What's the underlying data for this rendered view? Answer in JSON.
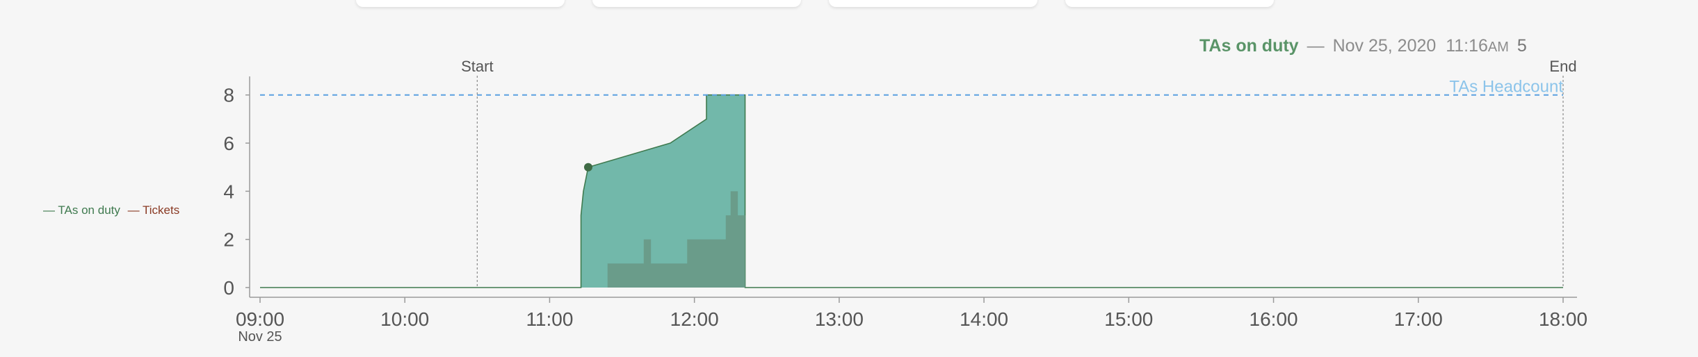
{
  "top_cards": [
    {},
    {},
    {},
    {}
  ],
  "tooltip": {
    "series": "TAs on duty",
    "dash": "—",
    "date": "Nov 25, 2020",
    "time": "11:16",
    "ampm": "AM",
    "value": "5"
  },
  "legend": {
    "duty_label": "— TAs on duty",
    "tickets_label": "— Tickets"
  },
  "chart_data": {
    "type": "area",
    "x_ticks": [
      "09:00",
      "10:00",
      "11:00",
      "12:00",
      "13:00",
      "14:00",
      "15:00",
      "16:00",
      "17:00",
      "18:00"
    ],
    "x_date_label": "Nov 25",
    "xlim": [
      "09:00",
      "18:00"
    ],
    "ylim": [
      0,
      8.8
    ],
    "y_ticks": [
      0,
      2,
      4,
      6,
      8
    ],
    "grid": false,
    "headcount": {
      "label": "TAs Headcount",
      "value": 8,
      "color": "#5aa0e0"
    },
    "markers": [
      {
        "label": "Start",
        "time": "10:30"
      },
      {
        "label": "End",
        "time": "18:00"
      }
    ],
    "series": [
      {
        "name": "TAs on duty",
        "color": "#72b8aa",
        "line_color": "#3f7a4f",
        "steps": [
          [
            "09:00",
            0
          ],
          [
            "11:13",
            0
          ],
          [
            "11:13",
            3
          ],
          [
            "11:14",
            4
          ],
          [
            "11:16",
            5
          ],
          [
            "11:50",
            6
          ],
          [
            "12:05",
            7
          ],
          [
            "12:05",
            8
          ],
          [
            "12:21",
            8
          ],
          [
            "12:21",
            0
          ],
          [
            "18:00",
            0
          ]
        ]
      },
      {
        "name": "Tickets",
        "color": "#6a9c8a",
        "steps": [
          [
            "11:24",
            0
          ],
          [
            "11:24",
            1
          ],
          [
            "11:39",
            1
          ],
          [
            "11:39",
            2
          ],
          [
            "11:42",
            2
          ],
          [
            "11:42",
            1
          ],
          [
            "11:57",
            1
          ],
          [
            "11:57",
            2
          ],
          [
            "12:13",
            2
          ],
          [
            "12:13",
            3
          ],
          [
            "12:15",
            3
          ],
          [
            "12:15",
            4
          ],
          [
            "12:18",
            4
          ],
          [
            "12:18",
            3
          ],
          [
            "12:21",
            3
          ],
          [
            "12:21",
            0
          ]
        ]
      }
    ],
    "highlight_point": {
      "time": "11:16",
      "value": 5
    }
  }
}
